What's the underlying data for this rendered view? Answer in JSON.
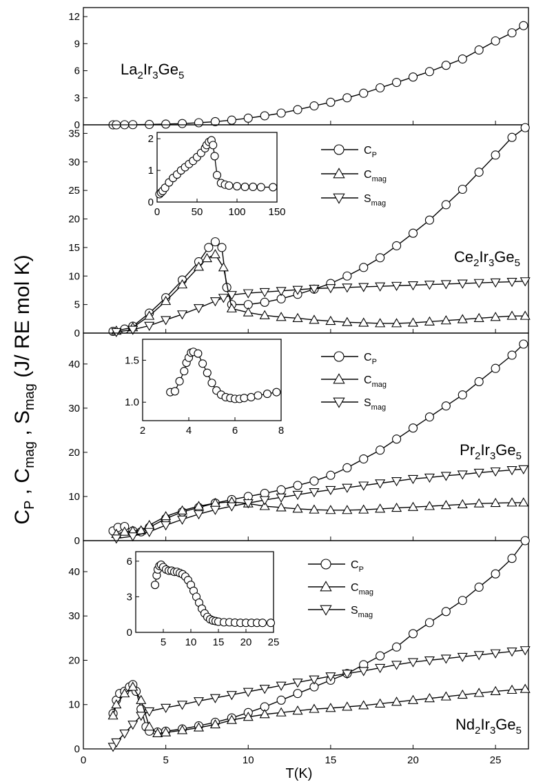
{
  "chart_data": {
    "type": "scatter",
    "title": "",
    "xlabel": "T(K)",
    "ylabel": {
      "parts": [
        "C",
        "P",
        " , C",
        "mag",
        " , S",
        "mag",
        " (J/ RE mol K)"
      ]
    },
    "xlim": [
      0,
      27
    ],
    "xticks": [
      0,
      5,
      10,
      15,
      20,
      25
    ],
    "panels": [
      {
        "id": "la",
        "compound": {
          "parts": [
            "La",
            "2",
            "Ir",
            "3",
            "Ge",
            "5"
          ]
        },
        "ylim": [
          0,
          13
        ],
        "yticks": [
          0,
          3,
          6,
          9,
          12
        ],
        "series": [
          {
            "name": "C_P",
            "marker": "circle",
            "x": [
              1.8,
              2,
              2.5,
              3,
              4,
              5,
              6,
              7,
              8,
              9,
              10,
              11,
              12,
              13,
              14,
              15,
              16,
              17,
              18,
              19,
              20,
              21,
              22,
              23,
              24,
              25,
              26,
              26.7
            ],
            "y": [
              0,
              0,
              0.01,
              0.02,
              0.04,
              0.08,
              0.14,
              0.23,
              0.35,
              0.52,
              0.74,
              1.0,
              1.3,
              1.68,
              2.1,
              2.5,
              3.0,
              3.5,
              4.1,
              4.7,
              5.3,
              5.9,
              6.6,
              7.3,
              8.3,
              9.3,
              10.2,
              11.0
            ]
          }
        ]
      },
      {
        "id": "ce",
        "compound": {
          "parts": [
            "Ce",
            "2",
            "Ir",
            "3",
            "Ge",
            "5"
          ]
        },
        "ylim": [
          0,
          36.5
        ],
        "yticks": [
          0,
          5,
          10,
          15,
          20,
          25,
          30,
          35
        ],
        "legend": [
          {
            "label": "C",
            "sub": "P"
          },
          {
            "label": "C",
            "sub": "mag"
          },
          {
            "label": "S",
            "sub": "mag"
          }
        ],
        "series": [
          {
            "name": "C_P",
            "marker": "circle",
            "x": [
              1.8,
              2.5,
              3,
              4,
              5,
              6,
              7,
              7.6,
              8,
              8.4,
              8.7,
              9,
              10,
              11,
              12,
              13,
              14,
              15,
              16,
              17,
              18,
              19,
              20,
              21,
              22,
              23,
              24,
              25,
              26,
              26.8
            ],
            "y": [
              0.3,
              0.7,
              1.2,
              3.5,
              6.2,
              9.3,
              12.5,
              15,
              16,
              15,
              8,
              5,
              5,
              5.4,
              6.0,
              6.8,
              7.7,
              8.7,
              10.0,
              11.5,
              13.2,
              15.3,
              17.5,
              19.8,
              22.5,
              25.2,
              28.2,
              31.2,
              34.3,
              36
            ]
          },
          {
            "name": "C_mag",
            "marker": "triangle-up",
            "x": [
              2,
              3,
              4,
              5,
              6,
              7,
              7.5,
              8,
              8.5,
              9,
              10,
              11,
              12,
              13,
              14,
              15,
              16,
              17,
              18,
              19,
              20,
              21,
              22,
              23,
              24,
              25,
              26,
              26.8
            ],
            "y": [
              0.4,
              1.0,
              3.0,
              5.6,
              8.5,
              11.6,
              13.1,
              13.8,
              11.5,
              4.3,
              3.6,
              3.1,
              2.8,
              2.6,
              2.3,
              2.1,
              1.9,
              1.8,
              1.7,
              1.7,
              1.8,
              2.0,
              2.2,
              2.4,
              2.6,
              2.8,
              3.0,
              3.0
            ]
          },
          {
            "name": "S_mag",
            "marker": "triangle-down",
            "x": [
              2,
              3,
              4,
              5,
              6,
              7,
              8,
              8.5,
              9,
              10,
              11,
              12,
              13,
              14,
              15,
              16,
              17,
              18,
              19,
              20,
              21,
              22,
              23,
              24,
              25,
              26,
              26.8
            ],
            "y": [
              0.2,
              0.6,
              1.3,
              2.3,
              3.3,
              4.4,
              5.6,
              6.2,
              6.7,
              7.0,
              7.2,
              7.4,
              7.6,
              7.8,
              7.9,
              8.0,
              8.1,
              8.2,
              8.3,
              8.4,
              8.5,
              8.6,
              8.7,
              8.8,
              8.9,
              9.0,
              9.1
            ]
          }
        ],
        "inset": {
          "xlim": [
            0,
            150
          ],
          "ylim": [
            0,
            2.2
          ],
          "xticks": [
            0,
            50,
            100,
            150
          ],
          "yticks": [
            0,
            1,
            2
          ],
          "x": [
            3,
            5,
            7,
            10,
            15,
            20,
            25,
            30,
            35,
            40,
            45,
            50,
            55,
            60,
            62,
            65,
            68,
            70,
            72,
            75,
            80,
            85,
            90,
            100,
            110,
            120,
            130,
            145
          ],
          "y": [
            0.25,
            0.3,
            0.35,
            0.45,
            0.62,
            0.76,
            0.87,
            1.0,
            1.1,
            1.2,
            1.3,
            1.42,
            1.55,
            1.7,
            1.8,
            1.9,
            1.95,
            1.8,
            1.45,
            0.85,
            0.6,
            0.55,
            0.52,
            0.5,
            0.48,
            0.48,
            0.47,
            0.47
          ]
        }
      },
      {
        "id": "pr",
        "compound": {
          "parts": [
            "Pr",
            "2",
            "Ir",
            "3",
            "Ge",
            "5"
          ]
        },
        "ylim": [
          0,
          47
        ],
        "yticks": [
          0,
          10,
          20,
          30,
          40
        ],
        "legend": [
          {
            "label": "C",
            "sub": "P"
          },
          {
            "label": "C",
            "sub": "mag"
          },
          {
            "label": "S",
            "sub": "mag"
          }
        ],
        "series": [
          {
            "name": "C_P",
            "marker": "circle",
            "x": [
              1.8,
              2.1,
              2.5,
              3,
              3.5,
              4,
              5,
              6,
              7,
              8,
              9,
              10,
              11,
              12,
              13,
              14,
              15,
              16,
              17,
              18,
              19,
              20,
              21,
              22,
              23,
              24,
              25,
              26,
              26.7
            ],
            "y": [
              2.2,
              3.0,
              3.2,
              2.2,
              2.0,
              3.0,
              5.0,
              6.5,
              7.5,
              8.5,
              9.3,
              10.0,
              10.7,
              11.5,
              12.5,
              13.5,
              14.8,
              16.5,
              18.5,
              20.5,
              23,
              25.5,
              28,
              30.5,
              33,
              36,
              39,
              42,
              44.5
            ]
          },
          {
            "name": "C_mag",
            "marker": "triangle-up",
            "x": [
              2,
              2.5,
              3,
              3.5,
              4,
              5,
              6,
              7,
              8,
              9,
              10,
              11,
              12,
              13,
              14,
              15,
              16,
              17,
              18,
              19,
              20,
              21,
              22,
              23,
              24,
              25,
              26,
              26.7
            ],
            "y": [
              1.5,
              2.0,
              2.2,
              2.3,
              3.5,
              5.5,
              6.8,
              7.8,
              8.5,
              8.8,
              8.4,
              7.8,
              7.5,
              7.2,
              7.0,
              6.9,
              6.9,
              7.0,
              7.2,
              7.4,
              7.6,
              7.8,
              8.0,
              8.2,
              8.4,
              8.5,
              8.6,
              8.6
            ]
          },
          {
            "name": "S_mag",
            "marker": "triangle-down",
            "x": [
              2,
              3,
              4,
              5,
              6,
              7,
              8,
              9,
              10,
              11,
              12,
              13,
              14,
              15,
              16,
              17,
              18,
              19,
              20,
              21,
              22,
              23,
              24,
              25,
              26,
              26.7
            ],
            "y": [
              0.5,
              1.0,
              2.0,
              3.5,
              4.8,
              6.0,
              7.0,
              7.8,
              8.5,
              9.2,
              9.8,
              10.4,
              11.0,
              11.5,
              12.0,
              12.5,
              13.0,
              13.5,
              14.0,
              14.3,
              14.7,
              15.0,
              15.4,
              15.7,
              16.0,
              16.2
            ]
          }
        ],
        "inset": {
          "xlim": [
            2,
            8
          ],
          "ylim": [
            0.78,
            1.75
          ],
          "xticks": [
            2,
            4,
            6,
            8
          ],
          "yticks": [
            1.0,
            1.5
          ],
          "ytick_labels": [
            "1.0",
            "1.5"
          ],
          "x": [
            3.2,
            3.4,
            3.6,
            3.8,
            3.9,
            4.0,
            4.1,
            4.2,
            4.4,
            4.6,
            4.8,
            5.0,
            5.2,
            5.4,
            5.6,
            5.8,
            6.0,
            6.2,
            6.4,
            6.7,
            7.0,
            7.4,
            7.8
          ],
          "y": [
            1.12,
            1.13,
            1.25,
            1.37,
            1.47,
            1.53,
            1.59,
            1.6,
            1.58,
            1.46,
            1.35,
            1.23,
            1.14,
            1.09,
            1.06,
            1.05,
            1.04,
            1.04,
            1.05,
            1.06,
            1.08,
            1.1,
            1.12
          ]
        }
      },
      {
        "id": "nd",
        "compound": {
          "parts": [
            "Nd",
            "2",
            "Ir",
            "3",
            "Ge",
            "5"
          ]
        },
        "ylim": [
          0,
          47
        ],
        "yticks": [
          0,
          10,
          20,
          30,
          40
        ],
        "legend": [
          {
            "label": "C",
            "sub": "P"
          },
          {
            "label": "C",
            "sub": "mag"
          },
          {
            "label": "S",
            "sub": "mag"
          }
        ],
        "series": [
          {
            "name": "C_P",
            "marker": "circle",
            "x": [
              1.8,
              2.0,
              2.2,
              2.5,
              2.8,
              3.0,
              3.2,
              3.5,
              3.8,
              4.0,
              4.5,
              5,
              6,
              7,
              8,
              9,
              10,
              11,
              12,
              13,
              14,
              15,
              16,
              17,
              18,
              19,
              20,
              21,
              22,
              23,
              24,
              25,
              26,
              26.8
            ],
            "y": [
              8,
              11,
              12.5,
              13,
              14,
              14.5,
              13,
              9,
              5,
              4,
              3.8,
              4.0,
              4.5,
              5.2,
              6.0,
              7.0,
              8.2,
              9.5,
              11,
              12.5,
              14,
              15.5,
              17,
              19,
              21,
              23,
              26,
              28.5,
              31,
              33.5,
              36.5,
              39.5,
              43,
              47
            ]
          },
          {
            "name": "C_mag",
            "marker": "triangle-up",
            "x": [
              1.8,
              2.0,
              2.5,
              3.0,
              3.5,
              4.0,
              4.5,
              5,
              6,
              7,
              8,
              9,
              10,
              11,
              12,
              13,
              14,
              15,
              16,
              17,
              18,
              19,
              20,
              21,
              22,
              23,
              24,
              25,
              26,
              26.8
            ],
            "y": [
              7.5,
              10,
              12.5,
              14,
              11,
              5,
              3.5,
              3.7,
              4.2,
              4.8,
              5.5,
              6.5,
              7.2,
              7.8,
              8.2,
              8.6,
              9.0,
              9.2,
              9.5,
              9.8,
              10.2,
              10.6,
              11.0,
              11.4,
              11.8,
              12.2,
              12.6,
              13.0,
              13.3,
              13.5
            ]
          },
          {
            "name": "S_mag",
            "marker": "triangle-down",
            "x": [
              1.8,
              2.0,
              2.5,
              3.0,
              3.5,
              4.0,
              5,
              6,
              7,
              8,
              9,
              10,
              11,
              12,
              13,
              14,
              15,
              16,
              17,
              18,
              19,
              20,
              21,
              22,
              23,
              24,
              25,
              26,
              26.8
            ],
            "y": [
              0.5,
              1.5,
              3.5,
              5.5,
              7.5,
              8.5,
              9.3,
              10.0,
              10.8,
              11.5,
              12.2,
              12.9,
              13.6,
              14.3,
              15.0,
              15.7,
              16.4,
              17.0,
              17.6,
              18.3,
              19.0,
              19.6,
              20.0,
              20.4,
              20.8,
              21.2,
              21.6,
              22.0,
              22.3
            ]
          }
        ],
        "inset": {
          "xlim": [
            0,
            25
          ],
          "ylim": [
            0,
            6.8
          ],
          "xticks": [
            5,
            10,
            15,
            20,
            25
          ],
          "yticks": [
            0,
            3,
            6
          ],
          "x": [
            3.5,
            3.8,
            4.0,
            4.3,
            4.6,
            5,
            5.5,
            6,
            6.5,
            7,
            7.5,
            8,
            8.5,
            9,
            9.5,
            10,
            10.5,
            11,
            11.5,
            12,
            12.5,
            13,
            13.5,
            14,
            14.5,
            15,
            16,
            17,
            18,
            19,
            20,
            21,
            22,
            23,
            24.5
          ],
          "y": [
            4.0,
            4.8,
            5.3,
            5.6,
            5.7,
            5.5,
            5.3,
            5.2,
            5.2,
            5.1,
            5.1,
            5.0,
            4.9,
            4.7,
            4.4,
            4.0,
            3.5,
            3.0,
            2.5,
            2.0,
            1.6,
            1.3,
            1.1,
            1.0,
            0.95,
            0.9,
            0.85,
            0.85,
            0.82,
            0.8,
            0.8,
            0.8,
            0.8,
            0.8,
            0.8
          ]
        }
      }
    ]
  }
}
